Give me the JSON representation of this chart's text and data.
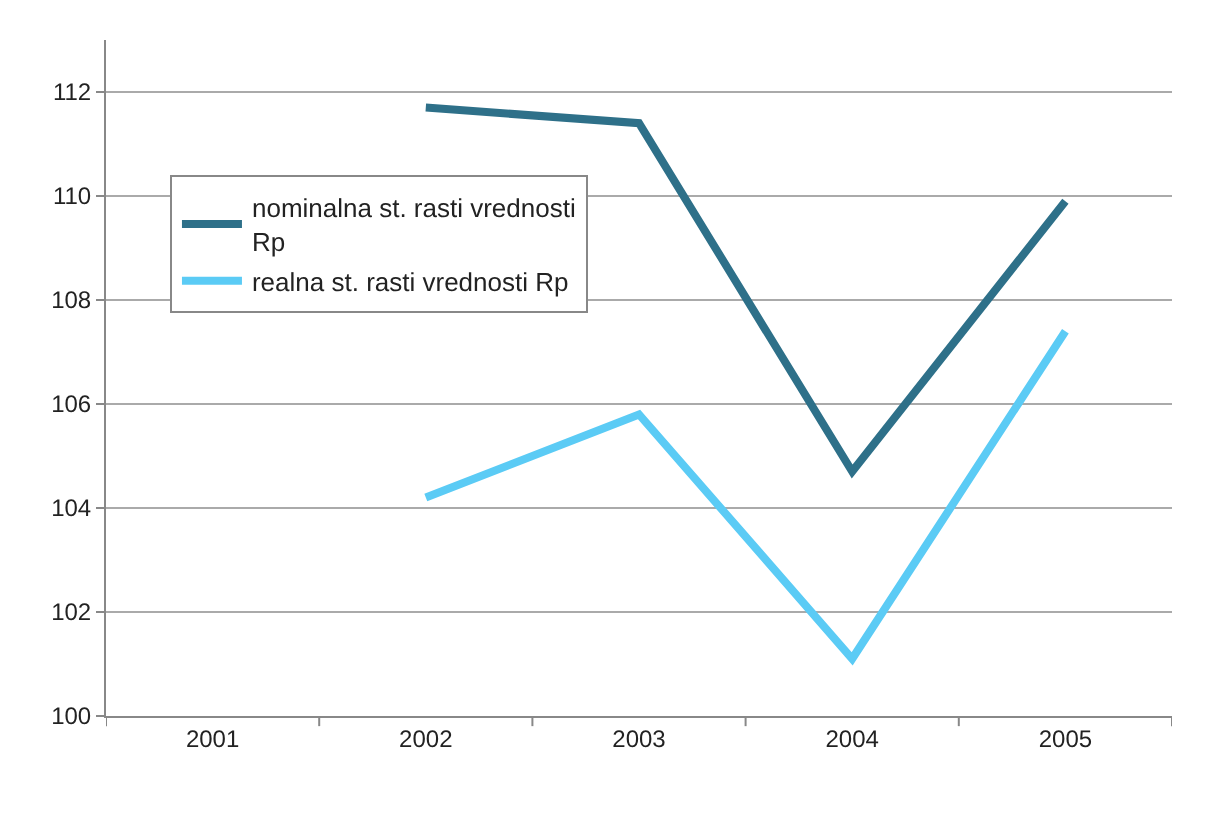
{
  "chart_data": {
    "type": "line",
    "categories": [
      "2001",
      "2002",
      "2003",
      "2004",
      "2005"
    ],
    "series": [
      {
        "name": "nominalna st. rasti vrednosti Rp",
        "color": "#2e7089",
        "values": [
          null,
          111.7,
          111.4,
          104.7,
          109.9
        ]
      },
      {
        "name": "realna st. rasti vrednosti Rp",
        "color": "#5bcbf5",
        "values": [
          null,
          104.2,
          105.8,
          101.1,
          107.4
        ]
      }
    ],
    "ylim": [
      100,
      113
    ],
    "yticks": [
      100,
      102,
      104,
      106,
      108,
      110,
      112
    ],
    "grid": "y",
    "legend": "top left",
    "marker": "none",
    "line_style": "solid"
  }
}
